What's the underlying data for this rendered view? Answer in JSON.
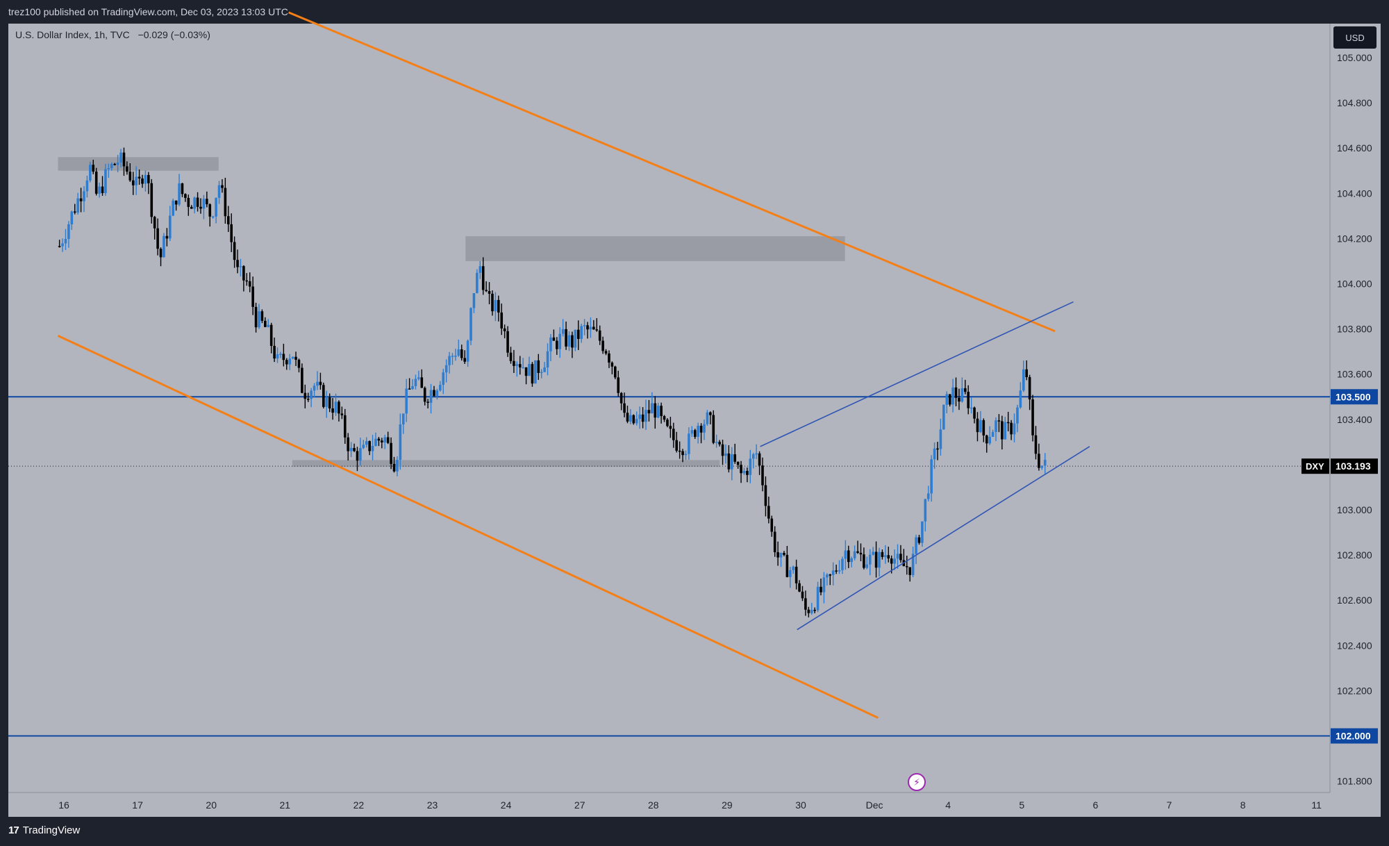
{
  "header": {
    "published": "trez100 published on TradingView.com, Dec 03, 2023 13:03 UTC"
  },
  "legend": {
    "symbol": "U.S. Dollar Index, 1h, TVC",
    "change": "−0.029 (−0.03%)"
  },
  "currency_button": "USD",
  "footer": {
    "brand": "TradingView"
  },
  "colors": {
    "background": "#b2b5be",
    "frame": "#1e222d",
    "bull": "#2e7dd1",
    "bear": "#000000",
    "channel": "#f57f17",
    "wedge": "#2f55b4",
    "level": "#0d47a1",
    "zone": "#9598a1"
  },
  "chart_data": {
    "type": "candlestick",
    "symbol": "DXY",
    "interval": "1h",
    "last_price": 103.193,
    "y_axis": {
      "ylim": [
        101.76,
        105.2
      ],
      "ticks": [
        "105.000",
        "104.800",
        "104.600",
        "104.400",
        "104.200",
        "104.000",
        "103.800",
        "103.600",
        "103.400",
        "103.000",
        "102.800",
        "102.600",
        "102.400",
        "102.200",
        "101.800"
      ]
    },
    "x_axis": {
      "ticks": [
        "16",
        "17",
        "20",
        "21",
        "22",
        "23",
        "24",
        "27",
        "28",
        "29",
        "30",
        "Dec",
        "4",
        "5",
        "6",
        "7",
        "8",
        "11"
      ]
    },
    "price_labels": [
      {
        "text": "103.500",
        "value": 103.5,
        "kind": "level"
      },
      {
        "text": "103.193",
        "value": 103.193,
        "kind": "last",
        "tag": "DXY"
      },
      {
        "text": "102.000",
        "value": 102.0,
        "kind": "level"
      }
    ],
    "horizontal_levels": [
      103.5,
      102.0
    ],
    "zones": [
      {
        "x0": -0.08,
        "x1": 2.1,
        "y0": 104.5,
        "y1": 104.56
      },
      {
        "x0": 5.45,
        "x1": 10.6,
        "y0": 104.1,
        "y1": 104.21
      },
      {
        "x0": 3.1,
        "x1": 8.9,
        "y0": 103.19,
        "y1": 103.22
      }
    ],
    "trendlines": [
      {
        "name": "channel-upper",
        "style": "channel",
        "p1": [
          3.05,
          105.2
        ],
        "p2": [
          13.45,
          103.79
        ]
      },
      {
        "name": "channel-lower",
        "style": "channel",
        "p1": [
          -0.08,
          103.77
        ],
        "p2": [
          11.05,
          102.08
        ]
      },
      {
        "name": "wedge-upper",
        "style": "wedge",
        "p1": [
          9.45,
          103.28
        ],
        "p2": [
          13.7,
          103.92
        ]
      },
      {
        "name": "wedge-lower",
        "style": "wedge",
        "p1": [
          9.95,
          102.47
        ],
        "p2": [
          13.92,
          103.28
        ]
      }
    ],
    "price_path": [
      [
        -0.08,
        104.15
      ],
      [
        0.1,
        104.3
      ],
      [
        0.25,
        104.42
      ],
      [
        0.35,
        104.52
      ],
      [
        0.45,
        104.38
      ],
      [
        0.6,
        104.5
      ],
      [
        0.75,
        104.55
      ],
      [
        0.9,
        104.48
      ],
      [
        1.0,
        104.42
      ],
      [
        1.1,
        104.52
      ],
      [
        1.2,
        104.32
      ],
      [
        1.3,
        104.1
      ],
      [
        1.45,
        104.3
      ],
      [
        1.55,
        104.42
      ],
      [
        1.7,
        104.36
      ],
      [
        1.85,
        104.38
      ],
      [
        2.0,
        104.3
      ],
      [
        2.1,
        104.45
      ],
      [
        2.2,
        104.32
      ],
      [
        2.35,
        104.05
      ],
      [
        2.5,
        104.0
      ],
      [
        2.6,
        103.85
      ],
      [
        2.75,
        103.8
      ],
      [
        2.9,
        103.65
      ],
      [
        3.1,
        103.7
      ],
      [
        3.25,
        103.52
      ],
      [
        3.4,
        103.55
      ],
      [
        3.55,
        103.48
      ],
      [
        3.7,
        103.45
      ],
      [
        3.8,
        103.35
      ],
      [
        3.9,
        103.25
      ],
      [
        4.05,
        103.25
      ],
      [
        4.2,
        103.3
      ],
      [
        4.35,
        103.32
      ],
      [
        4.5,
        103.2
      ],
      [
        4.6,
        103.45
      ],
      [
        4.75,
        103.58
      ],
      [
        4.9,
        103.5
      ],
      [
        5.05,
        103.55
      ],
      [
        5.2,
        103.65
      ],
      [
        5.35,
        103.72
      ],
      [
        5.45,
        103.62
      ],
      [
        5.55,
        103.96
      ],
      [
        5.65,
        104.08
      ],
      [
        5.75,
        103.92
      ],
      [
        5.9,
        103.88
      ],
      [
        6.05,
        103.7
      ],
      [
        6.2,
        103.65
      ],
      [
        6.35,
        103.6
      ],
      [
        6.5,
        103.65
      ],
      [
        6.6,
        103.72
      ],
      [
        6.75,
        103.76
      ],
      [
        6.9,
        103.74
      ],
      [
        7.05,
        103.8
      ],
      [
        7.2,
        103.78
      ],
      [
        7.35,
        103.72
      ],
      [
        7.5,
        103.6
      ],
      [
        7.6,
        103.4
      ],
      [
        7.7,
        103.38
      ],
      [
        7.85,
        103.4
      ],
      [
        8.0,
        103.46
      ],
      [
        8.15,
        103.36
      ],
      [
        8.3,
        103.3
      ],
      [
        8.45,
        103.28
      ],
      [
        8.6,
        103.38
      ],
      [
        8.75,
        103.4
      ],
      [
        8.9,
        103.25
      ],
      [
        9.0,
        103.22
      ],
      [
        9.1,
        103.2
      ],
      [
        9.2,
        103.15
      ],
      [
        9.3,
        103.2
      ],
      [
        9.4,
        103.25
      ],
      [
        9.5,
        103.1
      ],
      [
        9.6,
        102.9
      ],
      [
        9.7,
        102.78
      ],
      [
        9.8,
        102.75
      ],
      [
        9.92,
        102.72
      ],
      [
        10.05,
        102.55
      ],
      [
        10.15,
        102.58
      ],
      [
        10.3,
        102.65
      ],
      [
        10.45,
        102.72
      ],
      [
        10.6,
        102.82
      ],
      [
        10.75,
        102.8
      ],
      [
        10.9,
        102.78
      ],
      [
        11.05,
        102.78
      ],
      [
        11.2,
        102.82
      ],
      [
        11.35,
        102.75
      ],
      [
        11.5,
        102.75
      ],
      [
        11.65,
        102.95
      ],
      [
        11.75,
        103.15
      ],
      [
        11.85,
        103.28
      ],
      [
        11.95,
        103.45
      ],
      [
        12.05,
        103.52
      ],
      [
        12.15,
        103.5
      ],
      [
        12.25,
        103.5
      ],
      [
        12.35,
        103.42
      ],
      [
        12.5,
        103.32
      ],
      [
        12.65,
        103.38
      ],
      [
        12.75,
        103.34
      ],
      [
        12.85,
        103.36
      ],
      [
        12.95,
        103.45
      ],
      [
        13.05,
        103.65
      ],
      [
        13.15,
        103.3
      ],
      [
        13.25,
        103.2
      ],
      [
        13.33,
        103.19
      ]
    ]
  }
}
